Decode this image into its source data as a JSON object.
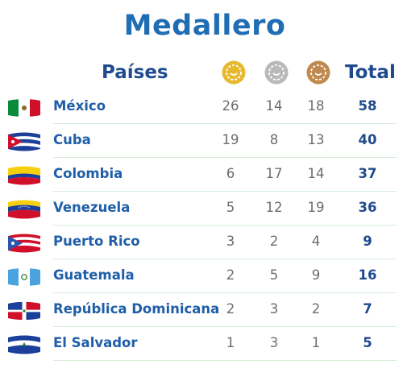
{
  "title": "Medallero",
  "header": {
    "countries_label": "Países",
    "total_label": "Total",
    "medal_icons": [
      "gold-medal-icon",
      "silver-medal-icon",
      "bronze-medal-icon"
    ]
  },
  "colors": {
    "title": "#1f6db4",
    "country_text": "#1f5ea8",
    "total_text": "#1f4b8e",
    "count_text": "#6d6d6d",
    "divider": "#d7ecd7",
    "gold": "#e7b92e",
    "silver": "#b9b9b9",
    "bronze": "#c0894e"
  },
  "rows": [
    {
      "country": "México",
      "gold": "26",
      "silver": "14",
      "bronze": "18",
      "total": "58",
      "flag": "mexico-flag-icon"
    },
    {
      "country": "Cuba",
      "gold": "19",
      "silver": "8",
      "bronze": "13",
      "total": "40",
      "flag": "cuba-flag-icon"
    },
    {
      "country": "Colombia",
      "gold": "6",
      "silver": "17",
      "bronze": "14",
      "total": "37",
      "flag": "colombia-flag-icon"
    },
    {
      "country": "Venezuela",
      "gold": "5",
      "silver": "12",
      "bronze": "19",
      "total": "36",
      "flag": "venezuela-flag-icon"
    },
    {
      "country": "Puerto Rico",
      "gold": "3",
      "silver": "2",
      "bronze": "4",
      "total": "9",
      "flag": "puerto-rico-flag-icon"
    },
    {
      "country": "Guatemala",
      "gold": "2",
      "silver": "5",
      "bronze": "9",
      "total": "16",
      "flag": "guatemala-flag-icon"
    },
    {
      "country": "República Dominicana",
      "gold": "2",
      "silver": "3",
      "bronze": "2",
      "total": "7",
      "flag": "dominican-republic-flag-icon"
    },
    {
      "country": "El Salvador",
      "gold": "1",
      "silver": "3",
      "bronze": "1",
      "total": "5",
      "flag": "el-salvador-flag-icon"
    }
  ]
}
